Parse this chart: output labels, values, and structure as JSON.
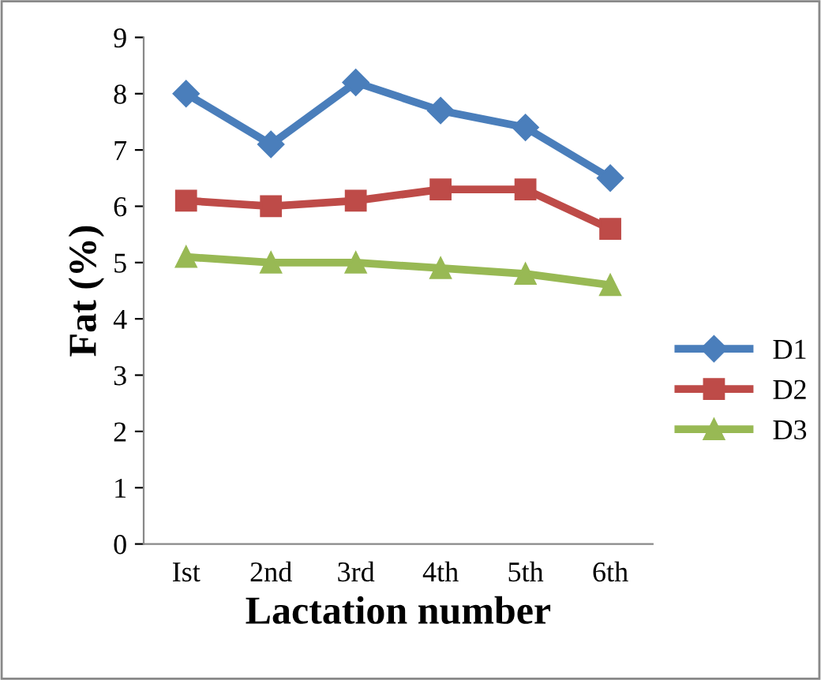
{
  "chart_data": {
    "type": "line",
    "xlabel": "Lactation number",
    "ylabel": "Fat (%)",
    "categories": [
      "Ist",
      "2nd",
      "3rd",
      "4th",
      "5th",
      "6th"
    ],
    "series": [
      {
        "name": "D1",
        "color": "#4a7ebb",
        "marker": "diamond",
        "values": [
          8.0,
          7.1,
          8.2,
          7.7,
          7.4,
          6.5
        ]
      },
      {
        "name": "D2",
        "color": "#be4b48",
        "marker": "square",
        "values": [
          6.1,
          6.0,
          6.1,
          6.3,
          6.3,
          5.6
        ]
      },
      {
        "name": "D3",
        "color": "#98b954",
        "marker": "triangle",
        "values": [
          5.1,
          5.0,
          5.0,
          4.9,
          4.8,
          4.6
        ]
      }
    ],
    "ylim": [
      0,
      9
    ],
    "yticks": [
      0,
      1,
      2,
      3,
      4,
      5,
      6,
      7,
      8,
      9
    ],
    "grid": false,
    "legend": "right",
    "line_style": "solid"
  }
}
